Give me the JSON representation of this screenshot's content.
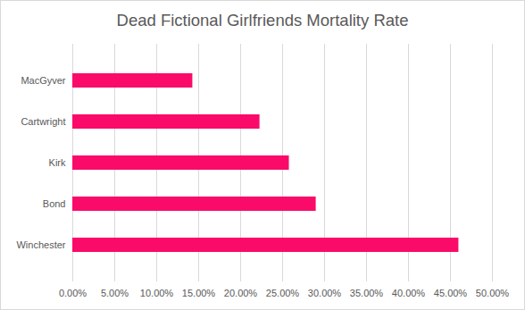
{
  "chart_data": {
    "type": "bar",
    "orientation": "horizontal",
    "title": "Dead Fictional Girlfriends Mortality Rate",
    "categories": [
      "MacGyver",
      "Cartwright",
      "Kirk",
      "Bond",
      "Winchester"
    ],
    "values": [
      14.3,
      22.3,
      25.8,
      29.0,
      46.0
    ],
    "color": "#fa0b69",
    "xlim": [
      0,
      50
    ],
    "xticks": [
      {
        "value": 0,
        "label": "0.00%"
      },
      {
        "value": 5,
        "label": "5.00%"
      },
      {
        "value": 10,
        "label": "10.00%"
      },
      {
        "value": 15,
        "label": "15.00%"
      },
      {
        "value": 20,
        "label": "20.00%"
      },
      {
        "value": 25,
        "label": "25.00%"
      },
      {
        "value": 30,
        "label": "30.00%"
      },
      {
        "value": 35,
        "label": "35.00%"
      },
      {
        "value": 40,
        "label": "40.00%"
      },
      {
        "value": 45,
        "label": "45.00%"
      },
      {
        "value": 50,
        "label": "50.00%"
      }
    ],
    "grid": true
  }
}
